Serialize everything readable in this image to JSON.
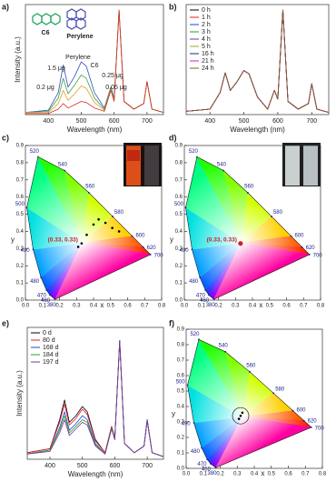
{
  "chart_data": [
    {
      "type": "line",
      "label": "a)",
      "xlabel": "Wavelength (nm)",
      "ylabel": "Intensity (a.u.)",
      "xlim": [
        330,
        750
      ],
      "ylim": [
        0,
        1
      ],
      "xticks": [
        400,
        500,
        600,
        700
      ],
      "annotations": [
        "C6",
        "Perylene",
        "Perylene",
        "C6",
        "1.5 μg",
        "0.25 μg",
        "0.2 μg",
        "0.05 μg"
      ],
      "x": [
        330,
        400,
        430,
        445,
        460,
        480,
        500,
        515,
        540,
        570,
        590,
        600,
        615,
        630,
        660,
        690,
        700,
        715,
        750
      ],
      "series": [
        {
          "color": "#3050c0",
          "values": [
            0.02,
            0.04,
            0.2,
            0.45,
            0.25,
            0.35,
            0.48,
            0.44,
            0.2,
            0.06,
            0.25,
            0.15,
            0.95,
            0.12,
            0.05,
            0.1,
            0.3,
            0.05,
            0.02
          ]
        },
        {
          "color": "#40a040",
          "values": [
            0.02,
            0.03,
            0.15,
            0.33,
            0.19,
            0.27,
            0.36,
            0.33,
            0.15,
            0.05,
            0.24,
            0.14,
            0.95,
            0.12,
            0.05,
            0.1,
            0.3,
            0.05,
            0.02
          ]
        },
        {
          "color": "#e0a020",
          "values": [
            0.02,
            0.02,
            0.1,
            0.22,
            0.13,
            0.19,
            0.26,
            0.24,
            0.11,
            0.04,
            0.23,
            0.13,
            0.95,
            0.12,
            0.05,
            0.1,
            0.3,
            0.05,
            0.02
          ]
        },
        {
          "color": "#d03030",
          "values": [
            0.01,
            0.01,
            0.05,
            0.1,
            0.06,
            0.09,
            0.12,
            0.11,
            0.06,
            0.03,
            0.22,
            0.12,
            0.95,
            0.12,
            0.05,
            0.1,
            0.3,
            0.05,
            0.02
          ]
        }
      ]
    },
    {
      "type": "line",
      "label": "b)",
      "xlabel": "Wavelength (nm)",
      "legend": "upper left",
      "xlim": [
        330,
        750
      ],
      "ylim": [
        0,
        1
      ],
      "xticks": [
        400,
        500,
        600,
        700
      ],
      "x": [
        330,
        400,
        430,
        445,
        460,
        480,
        500,
        515,
        540,
        570,
        590,
        600,
        615,
        630,
        660,
        690,
        700,
        715,
        750
      ],
      "series": [
        {
          "name": "0 h",
          "color": "#000000",
          "values": [
            0.03,
            0.05,
            0.2,
            0.38,
            0.22,
            0.3,
            0.4,
            0.37,
            0.16,
            0.05,
            0.22,
            0.14,
            0.95,
            0.12,
            0.05,
            0.1,
            0.28,
            0.05,
            0.02
          ]
        },
        {
          "name": "1 h",
          "color": "#e02020",
          "values": [
            0.03,
            0.05,
            0.2,
            0.38,
            0.22,
            0.3,
            0.4,
            0.37,
            0.16,
            0.05,
            0.22,
            0.14,
            0.95,
            0.12,
            0.05,
            0.1,
            0.28,
            0.05,
            0.02
          ]
        },
        {
          "name": "2 h",
          "color": "#2040e0",
          "values": [
            0.03,
            0.05,
            0.2,
            0.38,
            0.22,
            0.3,
            0.4,
            0.37,
            0.16,
            0.05,
            0.22,
            0.14,
            0.95,
            0.12,
            0.05,
            0.1,
            0.28,
            0.05,
            0.02
          ]
        },
        {
          "name": "3 h",
          "color": "#20a020",
          "values": [
            0.03,
            0.05,
            0.2,
            0.38,
            0.22,
            0.3,
            0.4,
            0.37,
            0.16,
            0.05,
            0.22,
            0.14,
            0.95,
            0.12,
            0.05,
            0.1,
            0.28,
            0.05,
            0.02
          ]
        },
        {
          "name": "4 h",
          "color": "#8030a0",
          "values": [
            0.03,
            0.05,
            0.2,
            0.38,
            0.22,
            0.3,
            0.4,
            0.37,
            0.16,
            0.05,
            0.22,
            0.14,
            0.95,
            0.12,
            0.05,
            0.1,
            0.28,
            0.05,
            0.02
          ]
        },
        {
          "name": "5 h",
          "color": "#a0a020",
          "values": [
            0.03,
            0.05,
            0.2,
            0.38,
            0.22,
            0.3,
            0.4,
            0.37,
            0.16,
            0.05,
            0.22,
            0.14,
            0.95,
            0.12,
            0.05,
            0.1,
            0.28,
            0.05,
            0.02
          ]
        },
        {
          "name": "16 h",
          "color": "#20208a",
          "values": [
            0.03,
            0.05,
            0.2,
            0.38,
            0.22,
            0.3,
            0.4,
            0.37,
            0.16,
            0.05,
            0.22,
            0.14,
            0.95,
            0.12,
            0.05,
            0.1,
            0.28,
            0.05,
            0.02
          ]
        },
        {
          "name": "21 h",
          "color": "#d020c0",
          "values": [
            0.03,
            0.05,
            0.2,
            0.38,
            0.22,
            0.3,
            0.4,
            0.37,
            0.16,
            0.05,
            0.22,
            0.14,
            0.95,
            0.12,
            0.05,
            0.1,
            0.28,
            0.05,
            0.02
          ]
        },
        {
          "name": "24 h",
          "color": "#806020",
          "values": [
            0.03,
            0.05,
            0.2,
            0.38,
            0.22,
            0.3,
            0.4,
            0.37,
            0.16,
            0.05,
            0.22,
            0.14,
            0.95,
            0.12,
            0.05,
            0.1,
            0.28,
            0.05,
            0.02
          ]
        }
      ]
    },
    {
      "type": "cie",
      "label": "c)",
      "xlabel": "x",
      "ylabel": "y",
      "xlim": [
        0,
        0.8
      ],
      "ylim": [
        0,
        0.9
      ],
      "xticks": [
        {
          "value": 0,
          "label": "0.0"
        },
        0.1,
        0.2,
        0.3,
        0.4,
        0.5,
        0.6,
        0.7,
        0.8
      ],
      "yticks": [
        {
          "value": 0,
          "label": "0.0"
        },
        0.1,
        0.2,
        0.3,
        0.4,
        0.5,
        0.6,
        0.7,
        0.8,
        0.9
      ],
      "locus": {
        "wavelengths": [
          380,
          460,
          470,
          480,
          490,
          500,
          520,
          540,
          560,
          580,
          600,
          620,
          700
        ],
        "x": [
          0.1741,
          0.144,
          0.1241,
          0.0913,
          0.0454,
          0.0082,
          0.0743,
          0.2296,
          0.3731,
          0.5125,
          0.627,
          0.6915,
          0.7347
        ],
        "y": [
          0.005,
          0.0297,
          0.0578,
          0.1327,
          0.295,
          0.5384,
          0.8338,
          0.7543,
          0.6245,
          0.4866,
          0.3725,
          0.3083,
          0.2653
        ]
      },
      "points": {
        "color": "#000000",
        "x": [
          0.33,
          0.31,
          0.36,
          0.4,
          0.43,
          0.47,
          0.51,
          0.55
        ],
        "y": [
          0.33,
          0.31,
          0.38,
          0.44,
          0.47,
          0.45,
          0.42,
          0.4
        ]
      },
      "annotation": "(0.33, 0.33)"
    },
    {
      "type": "cie",
      "label": "d)",
      "xlabel": "x",
      "ylabel": "y",
      "xlim": [
        0,
        0.8
      ],
      "ylim": [
        0,
        0.9
      ],
      "xticks": [
        {
          "value": 0,
          "label": "0.0"
        },
        0.1,
        0.2,
        0.3,
        0.4,
        0.5,
        0.6,
        0.7,
        0.8
      ],
      "yticks": [
        {
          "value": 0,
          "label": "0.0"
        },
        0.1,
        0.2,
        0.3,
        0.4,
        0.5,
        0.6,
        0.7,
        0.8,
        0.9
      ],
      "locus": {
        "wavelengths": [
          380,
          460,
          470,
          480,
          490,
          500,
          520,
          540,
          560,
          580,
          600,
          620,
          700
        ],
        "x": [
          0.1741,
          0.144,
          0.1241,
          0.0913,
          0.0454,
          0.0082,
          0.0743,
          0.2296,
          0.3731,
          0.5125,
          0.627,
          0.6915,
          0.7347
        ],
        "y": [
          0.005,
          0.0297,
          0.0578,
          0.1327,
          0.295,
          0.5384,
          0.8338,
          0.7543,
          0.6245,
          0.4866,
          0.3725,
          0.3083,
          0.2653
        ]
      },
      "points": {
        "color": "#d02020",
        "x": [
          0.33
        ],
        "y": [
          0.33
        ]
      },
      "annotation": "(0.33, 0.33)"
    },
    {
      "type": "line",
      "label": "e)",
      "xlabel": "Wavelength (nm)",
      "ylabel": "Intensity (a.u.)",
      "legend": "upper left",
      "xlim": [
        330,
        750
      ],
      "ylim": [
        0,
        1
      ],
      "xticks": [
        400,
        500,
        600,
        700
      ],
      "x": [
        330,
        400,
        430,
        445,
        460,
        480,
        500,
        515,
        540,
        570,
        590,
        600,
        615,
        630,
        660,
        690,
        700,
        715,
        750
      ],
      "series": [
        {
          "name": "0 d",
          "color": "#000000",
          "values": [
            0.05,
            0.08,
            0.3,
            0.45,
            0.28,
            0.33,
            0.4,
            0.36,
            0.15,
            0.05,
            0.25,
            0.16,
            0.9,
            0.12,
            0.05,
            0.1,
            0.3,
            0.05,
            0.02
          ]
        },
        {
          "name": "80 d",
          "color": "#e02020",
          "values": [
            0.05,
            0.08,
            0.28,
            0.42,
            0.26,
            0.31,
            0.38,
            0.34,
            0.14,
            0.05,
            0.25,
            0.16,
            0.9,
            0.12,
            0.05,
            0.1,
            0.3,
            0.05,
            0.02
          ]
        },
        {
          "name": "168 d",
          "color": "#2040e0",
          "values": [
            0.04,
            0.07,
            0.24,
            0.36,
            0.22,
            0.27,
            0.33,
            0.3,
            0.12,
            0.04,
            0.24,
            0.15,
            0.9,
            0.12,
            0.05,
            0.1,
            0.3,
            0.05,
            0.02
          ]
        },
        {
          "name": "184 d",
          "color": "#20a020",
          "values": [
            0.04,
            0.07,
            0.22,
            0.33,
            0.2,
            0.25,
            0.3,
            0.28,
            0.11,
            0.04,
            0.24,
            0.15,
            0.9,
            0.12,
            0.05,
            0.1,
            0.29,
            0.05,
            0.02
          ]
        },
        {
          "name": "197 d",
          "color": "#8030a0",
          "values": [
            0.04,
            0.06,
            0.2,
            0.3,
            0.18,
            0.23,
            0.28,
            0.26,
            0.1,
            0.04,
            0.23,
            0.15,
            0.9,
            0.12,
            0.05,
            0.1,
            0.29,
            0.05,
            0.02
          ]
        }
      ]
    },
    {
      "type": "cie",
      "label": "f)",
      "xlabel": "x",
      "ylabel": "y",
      "xlim": [
        0,
        0.8
      ],
      "ylim": [
        0,
        0.9
      ],
      "xticks": [
        {
          "value": 0,
          "label": "0.0"
        },
        0.1,
        0.2,
        0.3,
        0.4,
        0.5,
        0.6,
        0.7,
        0.8
      ],
      "yticks": [
        {
          "value": 0,
          "label": "0.0"
        },
        0.1,
        0.2,
        0.3,
        0.4,
        0.5,
        0.6,
        0.7,
        0.8,
        0.9
      ],
      "locus": {
        "wavelengths": [
          380,
          460,
          470,
          480,
          490,
          500,
          520,
          540,
          560,
          580,
          600,
          620,
          700
        ],
        "x": [
          0.1741,
          0.144,
          0.1241,
          0.0913,
          0.0454,
          0.0082,
          0.0743,
          0.2296,
          0.3731,
          0.5125,
          0.627,
          0.6915,
          0.7347
        ],
        "y": [
          0.005,
          0.0297,
          0.0578,
          0.1327,
          0.295,
          0.5384,
          0.8338,
          0.7543,
          0.6245,
          0.4866,
          0.3725,
          0.3083,
          0.2653
        ]
      },
      "points": {
        "color": "#000000",
        "x": [
          0.32,
          0.31,
          0.33
        ],
        "y": [
          0.34,
          0.32,
          0.36
        ]
      }
    }
  ]
}
